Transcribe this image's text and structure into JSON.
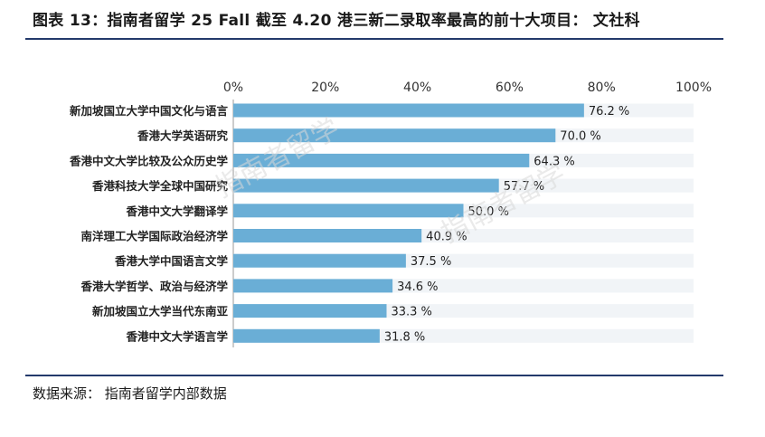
{
  "title": "图表 13：指南者留学 25 Fall 截至 4.20 港三新二录取率最高的前十大项目： 文社科",
  "source": "数据来源： 指南者留学内部数据",
  "colors": {
    "bar": "#6aaed6",
    "track": "#f1f4f7",
    "rule": "#233a6b"
  },
  "chart_data": {
    "type": "bar",
    "orientation": "horizontal",
    "categories": [
      "新加坡国立大学中国文化与语言",
      "香港大学英语研究",
      "香港中文大学比较及公众历史学",
      "香港科技大学全球中国研究",
      "香港中文大学翻译学",
      "南洋理工大学国际政治经济学",
      "香港大学中国语言文学",
      "香港大学哲学、政治与经济学",
      "新加坡国立大学当代东南亚",
      "香港中文大学语言学"
    ],
    "values": [
      76.2,
      70.0,
      64.3,
      57.7,
      50.0,
      40.9,
      37.5,
      34.6,
      33.3,
      31.8
    ],
    "value_labels": [
      "76.2 %",
      "70.0 %",
      "64.3 %",
      "57.7 %",
      "50.0 %",
      "40.9 %",
      "37.5 %",
      "34.6 %",
      "33.3 %",
      "31.8 %"
    ],
    "xlim": [
      0,
      100
    ],
    "xticks": [
      "0%",
      "20%",
      "40%",
      "60%",
      "80%",
      "100%"
    ],
    "axis_position": "top"
  }
}
